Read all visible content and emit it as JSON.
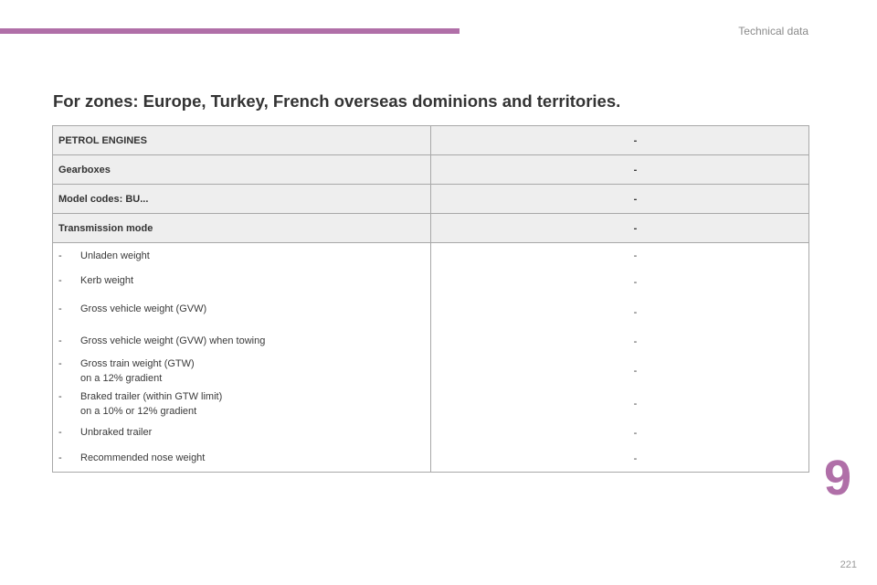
{
  "header": {
    "section_label": "Technical data",
    "accent_color": "#b06fa8"
  },
  "title": "For zones: Europe, Turkey, French overseas dominions and territories.",
  "table": {
    "header_rows": [
      {
        "label": "PETROL ENGINES",
        "value": "-"
      },
      {
        "label": "Gearboxes",
        "value": "-"
      },
      {
        "label": "Model codes: BU...",
        "value": "-"
      },
      {
        "label": "Transmission mode",
        "value": "-"
      }
    ],
    "body_rows": [
      {
        "dash": "-",
        "label": "Unladen weight",
        "value": "-"
      },
      {
        "dash": "-",
        "label": "Kerb weight",
        "value": "-"
      },
      {
        "dash": "-",
        "label": "Gross vehicle weight (GVW)",
        "value": "-"
      },
      {
        "dash": "-",
        "label": "Gross vehicle weight (GVW) when towing",
        "value": "-"
      },
      {
        "dash": "-",
        "label": "Gross train weight (GTW)",
        "label2": "on a 12% gradient",
        "value": "-"
      },
      {
        "dash": "-",
        "label": "Braked trailer (within GTW limit)",
        "label2": "on a 10% or 12% gradient",
        "value": "-"
      },
      {
        "dash": "-",
        "label": "Unbraked trailer",
        "value": "-"
      },
      {
        "dash": "-",
        "label": "Recommended nose weight",
        "value": "-"
      }
    ]
  },
  "chapter_number": "9",
  "page_number": "221"
}
